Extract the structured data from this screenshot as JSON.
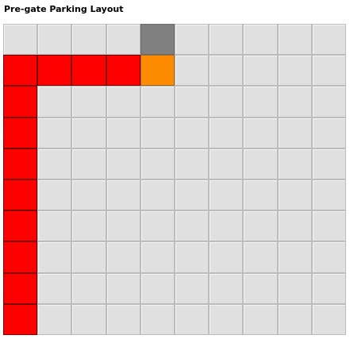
{
  "title": "Pre-gate Parking Layout",
  "colors": {
    "empty": "#e0e0e0",
    "red": "#ff0000",
    "orange": "#ff8c00",
    "gate": "#808080"
  },
  "grid": {
    "rows": 10,
    "cols": 10,
    "cells": [
      [
        "empty",
        "empty",
        "empty",
        "empty",
        "gate",
        "empty",
        "empty",
        "empty",
        "empty",
        "empty"
      ],
      [
        "red",
        "red",
        "red",
        "red",
        "orange",
        "empty",
        "empty",
        "empty",
        "empty",
        "empty"
      ],
      [
        "red",
        "empty",
        "empty",
        "empty",
        "empty",
        "empty",
        "empty",
        "empty",
        "empty",
        "empty"
      ],
      [
        "red",
        "empty",
        "empty",
        "empty",
        "empty",
        "empty",
        "empty",
        "empty",
        "empty",
        "empty"
      ],
      [
        "red",
        "empty",
        "empty",
        "empty",
        "empty",
        "empty",
        "empty",
        "empty",
        "empty",
        "empty"
      ],
      [
        "red",
        "empty",
        "empty",
        "empty",
        "empty",
        "empty",
        "empty",
        "empty",
        "empty",
        "empty"
      ],
      [
        "red",
        "empty",
        "empty",
        "empty",
        "empty",
        "empty",
        "empty",
        "empty",
        "empty",
        "empty"
      ],
      [
        "red",
        "empty",
        "empty",
        "empty",
        "empty",
        "empty",
        "empty",
        "empty",
        "empty",
        "empty"
      ],
      [
        "red",
        "empty",
        "empty",
        "empty",
        "empty",
        "empty",
        "empty",
        "empty",
        "empty",
        "empty"
      ],
      [
        "red",
        "empty",
        "empty",
        "empty",
        "empty",
        "empty",
        "empty",
        "empty",
        "empty",
        "empty"
      ]
    ]
  }
}
